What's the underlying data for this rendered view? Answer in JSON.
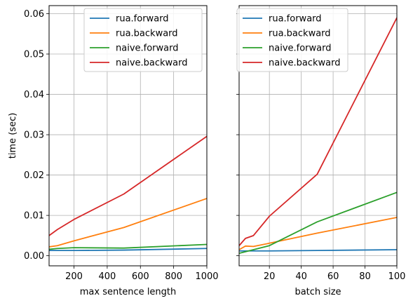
{
  "chart_data": [
    {
      "type": "line",
      "title": "",
      "xlabel": "max sentence length",
      "ylabel": "time (sec)",
      "xlim": [
        50,
        1000
      ],
      "ylim": [
        -0.0025,
        0.062
      ],
      "xticks": [
        200,
        400,
        600,
        800,
        1000
      ],
      "yticks": [
        0.0,
        0.01,
        0.02,
        0.03,
        0.04,
        0.05,
        0.06
      ],
      "ytick_labels": [
        "0.00",
        "0.01",
        "0.02",
        "0.03",
        "0.04",
        "0.05",
        "0.06"
      ],
      "grid": true,
      "legend": "top-center",
      "x": [
        50,
        100,
        200,
        500,
        1000
      ],
      "series": [
        {
          "name": "rua.forward",
          "color": "#1f77b4",
          "values": [
            0.0013,
            0.0013,
            0.0013,
            0.0014,
            0.0018
          ]
        },
        {
          "name": "rua.backward",
          "color": "#ff7f0e",
          "values": [
            0.0022,
            0.0025,
            0.0037,
            0.007,
            0.0142
          ]
        },
        {
          "name": "naive.forward",
          "color": "#2ca02c",
          "values": [
            0.0016,
            0.0018,
            0.002,
            0.0019,
            0.0028
          ]
        },
        {
          "name": "naive.backward",
          "color": "#d62728",
          "values": [
            0.005,
            0.0065,
            0.009,
            0.0153,
            0.0296
          ]
        }
      ]
    },
    {
      "type": "line",
      "title": "",
      "xlabel": "batch size",
      "ylabel": "",
      "xlim": [
        1,
        100
      ],
      "ylim": [
        -0.0025,
        0.062
      ],
      "xticks": [
        20,
        40,
        60,
        80,
        100
      ],
      "yticks": [
        0.0,
        0.01,
        0.02,
        0.03,
        0.04,
        0.05,
        0.06
      ],
      "ytick_labels": [],
      "grid": true,
      "legend": "top-left",
      "x": [
        1,
        5,
        10,
        20,
        50,
        100
      ],
      "series": [
        {
          "name": "rua.forward",
          "color": "#1f77b4",
          "values": [
            0.0012,
            0.0012,
            0.0012,
            0.0012,
            0.0013,
            0.0015
          ]
        },
        {
          "name": "rua.backward",
          "color": "#ff7f0e",
          "values": [
            0.0015,
            0.0024,
            0.0023,
            0.0031,
            0.0056,
            0.0095
          ]
        },
        {
          "name": "naive.forward",
          "color": "#2ca02c",
          "values": [
            0.0006,
            0.001,
            0.0015,
            0.0025,
            0.0084,
            0.0157
          ]
        },
        {
          "name": "naive.backward",
          "color": "#d62728",
          "values": [
            0.0025,
            0.0043,
            0.005,
            0.0098,
            0.0202,
            0.059
          ]
        }
      ]
    }
  ]
}
